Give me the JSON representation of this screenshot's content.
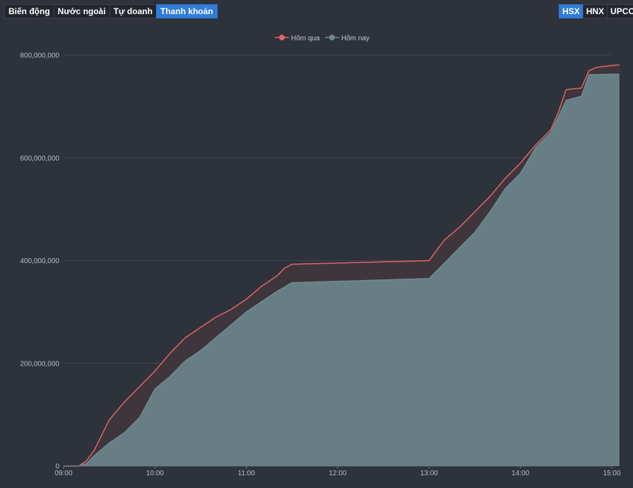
{
  "tabs": [
    {
      "label": "Biến động",
      "active": false
    },
    {
      "label": "Nước ngoài",
      "active": false
    },
    {
      "label": "Tự doanh",
      "active": false
    },
    {
      "label": "Thanh khoản",
      "active": true
    }
  ],
  "exchanges": [
    {
      "label": "HSX",
      "active": true
    },
    {
      "label": "HNX",
      "active": false
    },
    {
      "label": "UPCOM",
      "active": false
    }
  ],
  "chart_data": {
    "type": "area",
    "ylim": [
      0,
      800000000
    ],
    "y_ticks": [
      0,
      200000000,
      400000000,
      600000000,
      800000000
    ],
    "y_tick_labels": [
      "0",
      "200,000,000",
      "400,000,000",
      "600,000,000",
      "800,000,000"
    ],
    "x_ticks": [
      "09:00",
      "10:00",
      "11:00",
      "12:00",
      "13:00",
      "14:00",
      "15:00"
    ],
    "grid": true,
    "legend_position": "top-center",
    "series": [
      {
        "name": "Hôm qua",
        "color": "#e06666",
        "points": [
          [
            "09:00",
            0
          ],
          [
            "09:10",
            0
          ],
          [
            "09:15",
            10000000
          ],
          [
            "09:20",
            30000000
          ],
          [
            "09:25",
            60000000
          ],
          [
            "09:30",
            90000000
          ],
          [
            "09:40",
            125000000
          ],
          [
            "09:50",
            155000000
          ],
          [
            "10:00",
            185000000
          ],
          [
            "10:10",
            220000000
          ],
          [
            "10:20",
            250000000
          ],
          [
            "10:30",
            270000000
          ],
          [
            "10:40",
            290000000
          ],
          [
            "10:50",
            305000000
          ],
          [
            "11:00",
            325000000
          ],
          [
            "11:10",
            350000000
          ],
          [
            "11:20",
            370000000
          ],
          [
            "11:25",
            385000000
          ],
          [
            "11:30",
            393000000
          ],
          [
            "13:00",
            400000000
          ],
          [
            "13:10",
            440000000
          ],
          [
            "13:20",
            465000000
          ],
          [
            "13:30",
            495000000
          ],
          [
            "13:40",
            525000000
          ],
          [
            "13:50",
            560000000
          ],
          [
            "14:00",
            590000000
          ],
          [
            "14:10",
            625000000
          ],
          [
            "14:20",
            655000000
          ],
          [
            "14:25",
            690000000
          ],
          [
            "14:30",
            733000000
          ],
          [
            "14:40",
            736000000
          ],
          [
            "14:45",
            770000000
          ],
          [
            "14:50",
            776000000
          ],
          [
            "15:00",
            780000000
          ],
          [
            "15:05",
            781000000
          ]
        ]
      },
      {
        "name": "Hôm nay",
        "color": "#6e8b92",
        "points": [
          [
            "09:00",
            0
          ],
          [
            "09:10",
            0
          ],
          [
            "09:15",
            5000000
          ],
          [
            "09:20",
            20000000
          ],
          [
            "09:30",
            45000000
          ],
          [
            "09:40",
            65000000
          ],
          [
            "09:50",
            95000000
          ],
          [
            "10:00",
            150000000
          ],
          [
            "10:10",
            175000000
          ],
          [
            "10:20",
            205000000
          ],
          [
            "10:30",
            225000000
          ],
          [
            "10:40",
            250000000
          ],
          [
            "10:50",
            275000000
          ],
          [
            "11:00",
            300000000
          ],
          [
            "11:10",
            320000000
          ],
          [
            "11:20",
            340000000
          ],
          [
            "11:30",
            357000000
          ],
          [
            "13:00",
            365000000
          ],
          [
            "13:10",
            395000000
          ],
          [
            "13:20",
            425000000
          ],
          [
            "13:30",
            455000000
          ],
          [
            "13:40",
            495000000
          ],
          [
            "13:50",
            540000000
          ],
          [
            "14:00",
            570000000
          ],
          [
            "14:10",
            620000000
          ],
          [
            "14:20",
            650000000
          ],
          [
            "14:30",
            712000000
          ],
          [
            "14:40",
            720000000
          ],
          [
            "14:45",
            762000000
          ],
          [
            "15:00",
            763000000
          ],
          [
            "15:05",
            763000000
          ]
        ]
      }
    ]
  }
}
